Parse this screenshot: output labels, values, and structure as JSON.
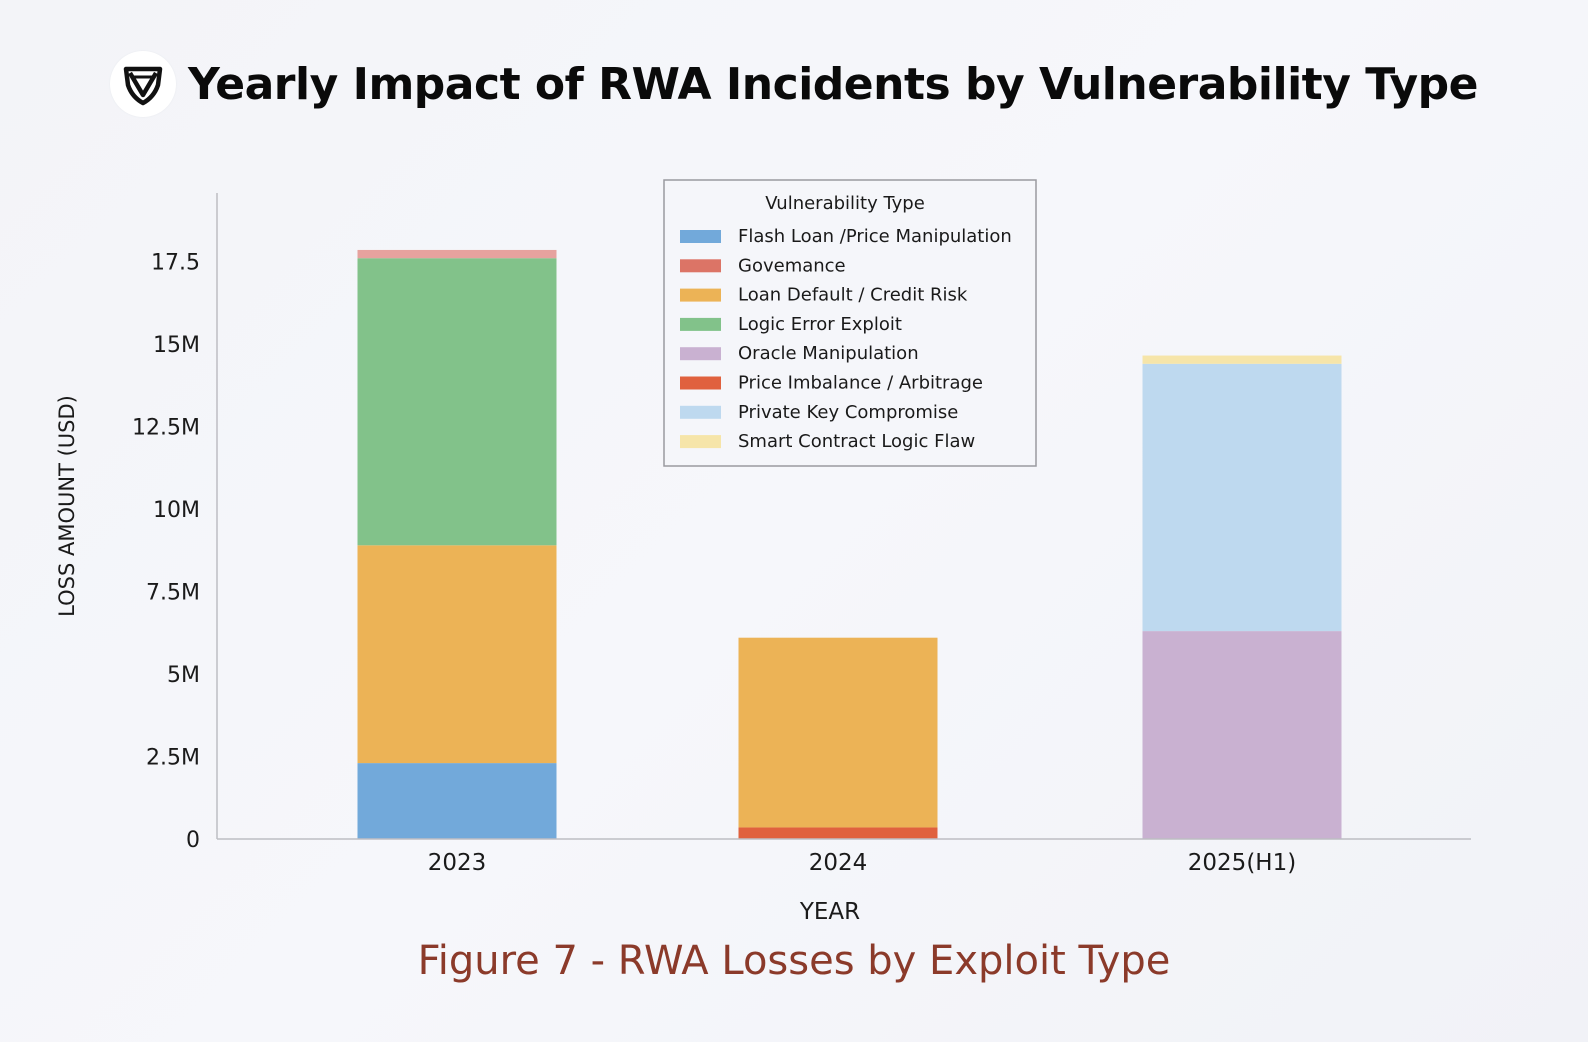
{
  "header": {
    "title": "Yearly Impact of RWA Incidents by Vulnerability Type"
  },
  "caption": "Figure 7 - RWA Losses by Exploit Type",
  "chart_data": {
    "type": "bar",
    "stacked": true,
    "categories": [
      "2023",
      "2024",
      "2025(H1)"
    ],
    "xlabel": "YEAR",
    "ylabel": "LOSS AMOUNT (USD)",
    "yticks": [
      {
        "value": 0,
        "label": "0"
      },
      {
        "value": 2.5,
        "label": "2.5M"
      },
      {
        "value": 5,
        "label": "5M"
      },
      {
        "value": 7.5,
        "label": "7.5M"
      },
      {
        "value": 10,
        "label": "10M"
      },
      {
        "value": 12.5,
        "label": "12.5M"
      },
      {
        "value": 15,
        "label": "15M"
      },
      {
        "value": 17.5,
        "label": "17.5"
      }
    ],
    "ylim": [
      0,
      19.5
    ],
    "grid": false,
    "legend_title": "Vulnerability Type",
    "legend_position": "top-center",
    "series": [
      {
        "name": "Flash Loan /Price Manipulation",
        "color": "#72a9da",
        "values": [
          2.3,
          0,
          0
        ]
      },
      {
        "name": "Govemance",
        "color": "#dc7466",
        "values": [
          0,
          0,
          0
        ]
      },
      {
        "name": "Loan Default / Credit Risk",
        "color": "#ecb356",
        "values": [
          6.6,
          5.75,
          0
        ]
      },
      {
        "name": "Logic Error Exploit",
        "color": "#82c28a",
        "values": [
          8.7,
          0,
          0
        ]
      },
      {
        "name": "Oracle Manipulation",
        "color": "#c9b1d1",
        "values": [
          0,
          0,
          6.3
        ]
      },
      {
        "name": "Price Imbalance / Arbitrage",
        "color": "#e0613e",
        "values": [
          0,
          0.35,
          0
        ]
      },
      {
        "name": "Private Key Compromise",
        "color": "#bed9ef",
        "values": [
          0,
          0,
          8.1
        ]
      },
      {
        "name": "Smart Contract Logic Flaw",
        "color": "#f6e5a9",
        "values": [
          0,
          0,
          0.25
        ]
      },
      {
        "name": "",
        "color": "#e6a29e",
        "values": [
          0.25,
          0,
          0
        ]
      }
    ],
    "stack_order": [
      [
        0,
        2,
        3,
        8
      ],
      [
        5,
        2
      ],
      [
        4,
        6,
        7
      ]
    ]
  }
}
